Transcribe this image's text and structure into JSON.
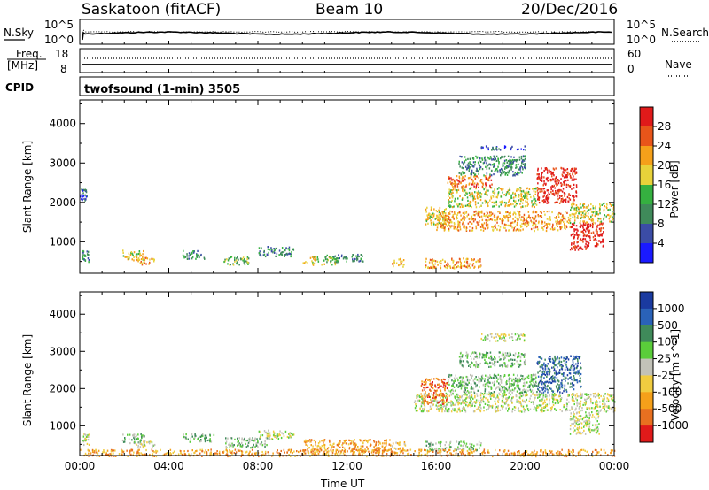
{
  "header": {
    "station": "Saskatoon (fitACF)",
    "beam": "Beam 10",
    "date": "20/Dec/2016"
  },
  "top_panels": {
    "nsky_label": "N.Sky",
    "nsky_ticks": [
      "10^5",
      "10^0"
    ],
    "nsearch_label": "N.Search",
    "nsearch_ticks": [
      "10^5",
      "10^0"
    ],
    "freq_label": "Freq.",
    "freq_unit": "[MHz]",
    "freq_ticks": [
      "18",
      "8"
    ],
    "nave_label": "Nave",
    "nave_ticks": [
      "60",
      "0"
    ],
    "cpid_label": "CPID",
    "cpid_text": "twofsound (1-min) 3505"
  },
  "colors": {
    "power": [
      "#1a1aff",
      "#3b4ca6",
      "#3f8a5a",
      "#35b040",
      "#e8d23a",
      "#f5a01a",
      "#e8551a",
      "#e01a1a"
    ],
    "velocity": [
      "#1a3aa0",
      "#2a62b8",
      "#3f8a5a",
      "#5acd3a",
      "#c2c2b8",
      "#f0cc40",
      "#f5a01a",
      "#e87020",
      "#e01a1a"
    ]
  },
  "chart_data": [
    {
      "type": "heatmap",
      "name": "power",
      "ylabel": "Slant Range [km]",
      "yticks": [
        "4000",
        "3000",
        "2000",
        "1000"
      ],
      "ylim": [
        200,
        4600
      ],
      "colorbar_label": "Power [dB]",
      "colorbar_ticks": [
        "28",
        "24",
        "20",
        "16",
        "12",
        "8",
        "4"
      ],
      "blobs": [
        {
          "t": [
            0.1,
            0.4
          ],
          "r": [
            500,
            800
          ],
          "v": 2
        },
        {
          "t": [
            0.0,
            0.3
          ],
          "r": [
            2050,
            2350
          ],
          "v": 1
        },
        {
          "t": [
            1.9,
            2.9
          ],
          "r": [
            550,
            800
          ],
          "v": 4
        },
        {
          "t": [
            2.5,
            3.4
          ],
          "r": [
            430,
            620
          ],
          "v": 5
        },
        {
          "t": [
            4.6,
            5.6
          ],
          "r": [
            580,
            800
          ],
          "v": 2
        },
        {
          "t": [
            6.4,
            7.6
          ],
          "r": [
            430,
            650
          ],
          "v": 3
        },
        {
          "t": [
            8.0,
            9.6
          ],
          "r": [
            650,
            900
          ],
          "v": 2
        },
        {
          "t": [
            10.0,
            11.5
          ],
          "r": [
            430,
            650
          ],
          "v": 4
        },
        {
          "t": [
            11.0,
            12.7
          ],
          "r": [
            500,
            700
          ],
          "v": 2
        },
        {
          "t": [
            14.0,
            14.6
          ],
          "r": [
            380,
            600
          ],
          "v": 5
        },
        {
          "t": [
            15.5,
            18.0
          ],
          "r": [
            350,
            600
          ],
          "v": 5
        },
        {
          "t": [
            15.5,
            16.5
          ],
          "r": [
            1450,
            1900
          ],
          "v": 4
        },
        {
          "t": [
            16.0,
            22.0
          ],
          "r": [
            1300,
            1800
          ],
          "v": 5
        },
        {
          "t": [
            16.5,
            20.5
          ],
          "r": [
            1900,
            2400
          ],
          "v": 4
        },
        {
          "t": [
            16.5,
            18.5
          ],
          "r": [
            2400,
            2700
          ],
          "v": 6
        },
        {
          "t": [
            17.0,
            20.0
          ],
          "r": [
            2700,
            3200
          ],
          "v": 2
        },
        {
          "t": [
            20.5,
            22.3
          ],
          "r": [
            2000,
            2900
          ],
          "v": 7
        },
        {
          "t": [
            22.0,
            23.5
          ],
          "r": [
            800,
            1500
          ],
          "v": 7
        },
        {
          "t": [
            22.0,
            24.0
          ],
          "r": [
            1500,
            2000
          ],
          "v": 4
        },
        {
          "t": [
            18.0,
            20.0
          ],
          "r": [
            3350,
            3450
          ],
          "v": 1
        }
      ]
    },
    {
      "type": "heatmap",
      "name": "velocity",
      "ylabel": "Slant Range [km]",
      "yticks": [
        "4000",
        "3000",
        "2000",
        "1000"
      ],
      "ylim": [
        200,
        4600
      ],
      "colorbar_label": "Velocity [m s^-1]",
      "colorbar_ticks": [
        "1000",
        "500",
        "100",
        "25",
        "-25",
        "-100",
        "-500",
        "-1000"
      ],
      "xlabel": "Time UT",
      "xticks": [
        "00:00",
        "04:00",
        "08:00",
        "12:00",
        "16:00",
        "20:00",
        "00:00"
      ],
      "xlim": [
        0,
        24
      ],
      "blobs": [
        {
          "t": [
            0.1,
            0.4
          ],
          "r": [
            500,
            800
          ],
          "v": 4
        },
        {
          "t": [
            1.9,
            2.9
          ],
          "r": [
            550,
            800
          ],
          "v": 3
        },
        {
          "t": [
            2.5,
            3.4
          ],
          "r": [
            430,
            620
          ],
          "v": 4
        },
        {
          "t": [
            4.6,
            6.0
          ],
          "r": [
            580,
            800
          ],
          "v": 3
        },
        {
          "t": [
            6.5,
            8.5
          ],
          "r": [
            430,
            700
          ],
          "v": 3
        },
        {
          "t": [
            8.0,
            9.6
          ],
          "r": [
            650,
            900
          ],
          "v": 4
        },
        {
          "t": [
            10.0,
            14.0
          ],
          "r": [
            300,
            650
          ],
          "v": 6
        },
        {
          "t": [
            14.0,
            14.6
          ],
          "r": [
            380,
            600
          ],
          "v": 5
        },
        {
          "t": [
            15.5,
            18.0
          ],
          "r": [
            350,
            600
          ],
          "v": 3
        },
        {
          "t": [
            15.0,
            24.0
          ],
          "r": [
            1400,
            1900
          ],
          "v": 4
        },
        {
          "t": [
            15.3,
            16.5
          ],
          "r": [
            1600,
            2300
          ],
          "v": 7
        },
        {
          "t": [
            16.5,
            20.5
          ],
          "r": [
            1900,
            2400
          ],
          "v": 3
        },
        {
          "t": [
            17.0,
            20.0
          ],
          "r": [
            2600,
            3000
          ],
          "v": 3
        },
        {
          "t": [
            20.5,
            22.5
          ],
          "r": [
            1900,
            2900
          ],
          "v": 1
        },
        {
          "t": [
            22.0,
            23.3
          ],
          "r": [
            800,
            1400
          ],
          "v": 4
        },
        {
          "t": [
            18.0,
            20.0
          ],
          "r": [
            3300,
            3500
          ],
          "v": 4
        },
        {
          "t": [
            0.0,
            24.0
          ],
          "r": [
            200,
            380
          ],
          "v": 6
        }
      ]
    }
  ]
}
